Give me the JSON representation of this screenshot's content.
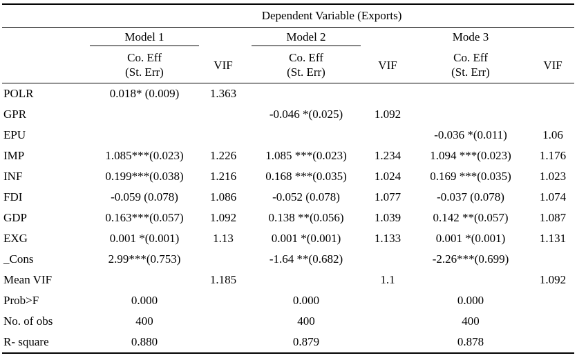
{
  "dependent_variable": "Dependent Variable (Exports)",
  "models": [
    "Model 1",
    "Model 2",
    "Mode 3"
  ],
  "coef_header": [
    "Co. Eff",
    "(St. Err)"
  ],
  "vif_header": "VIF",
  "rows": [
    {
      "label": "POLR",
      "cells": [
        "0.018* (0.009)",
        "1.363",
        "",
        "",
        "",
        ""
      ]
    },
    {
      "label": "GPR",
      "cells": [
        "",
        "",
        "-0.046 *(0.025)",
        "1.092",
        "",
        ""
      ]
    },
    {
      "label": "EPU",
      "cells": [
        "",
        "",
        "",
        "",
        "-0.036 *(0.011)",
        "1.06"
      ]
    },
    {
      "label": "IMP",
      "cells": [
        "1.085***(0.023)",
        "1.226",
        "1.085 ***(0.023)",
        "1.234",
        "1.094 ***(0.023)",
        "1.176"
      ]
    },
    {
      "label": "INF",
      "cells": [
        "0.199***(0.038)",
        "1.216",
        "0.168 ***(0.035)",
        "1.024",
        "0.169 ***(0.035)",
        "1.023"
      ]
    },
    {
      "label": "FDI",
      "cells": [
        "-0.059 (0.078)",
        "1.086",
        "-0.052 (0.078)",
        "1.077",
        "-0.037 (0.078)",
        "1.074"
      ]
    },
    {
      "label": "GDP",
      "cells": [
        "0.163***(0.057)",
        "1.092",
        "0.138 **(0.056)",
        "1.039",
        "0.142 **(0.057)",
        "1.087"
      ]
    },
    {
      "label": "EXG",
      "cells": [
        "0.001 *(0.001)",
        "1.13",
        "0.001 *(0.001)",
        "1.133",
        "0.001 *(0.001)",
        "1.131"
      ]
    },
    {
      "label": "_Cons",
      "cells": [
        "2.99***(0.753)",
        "",
        "-1.64 **(0.682)",
        "",
        "-2.26***(0.699)",
        ""
      ]
    },
    {
      "label": "Mean VIF",
      "cells": [
        "",
        "1.185",
        "",
        "1.1",
        "",
        "1.092"
      ]
    },
    {
      "label": "Prob>F",
      "cells": [
        "0.000",
        "",
        "0.000",
        "",
        "0.000",
        ""
      ]
    },
    {
      "label": "No. of obs",
      "cells": [
        "400",
        "",
        "400",
        "",
        "400",
        ""
      ]
    },
    {
      "label": "R- square",
      "cells": [
        "0.880",
        "",
        "0.879",
        "",
        "0.878",
        ""
      ]
    }
  ]
}
